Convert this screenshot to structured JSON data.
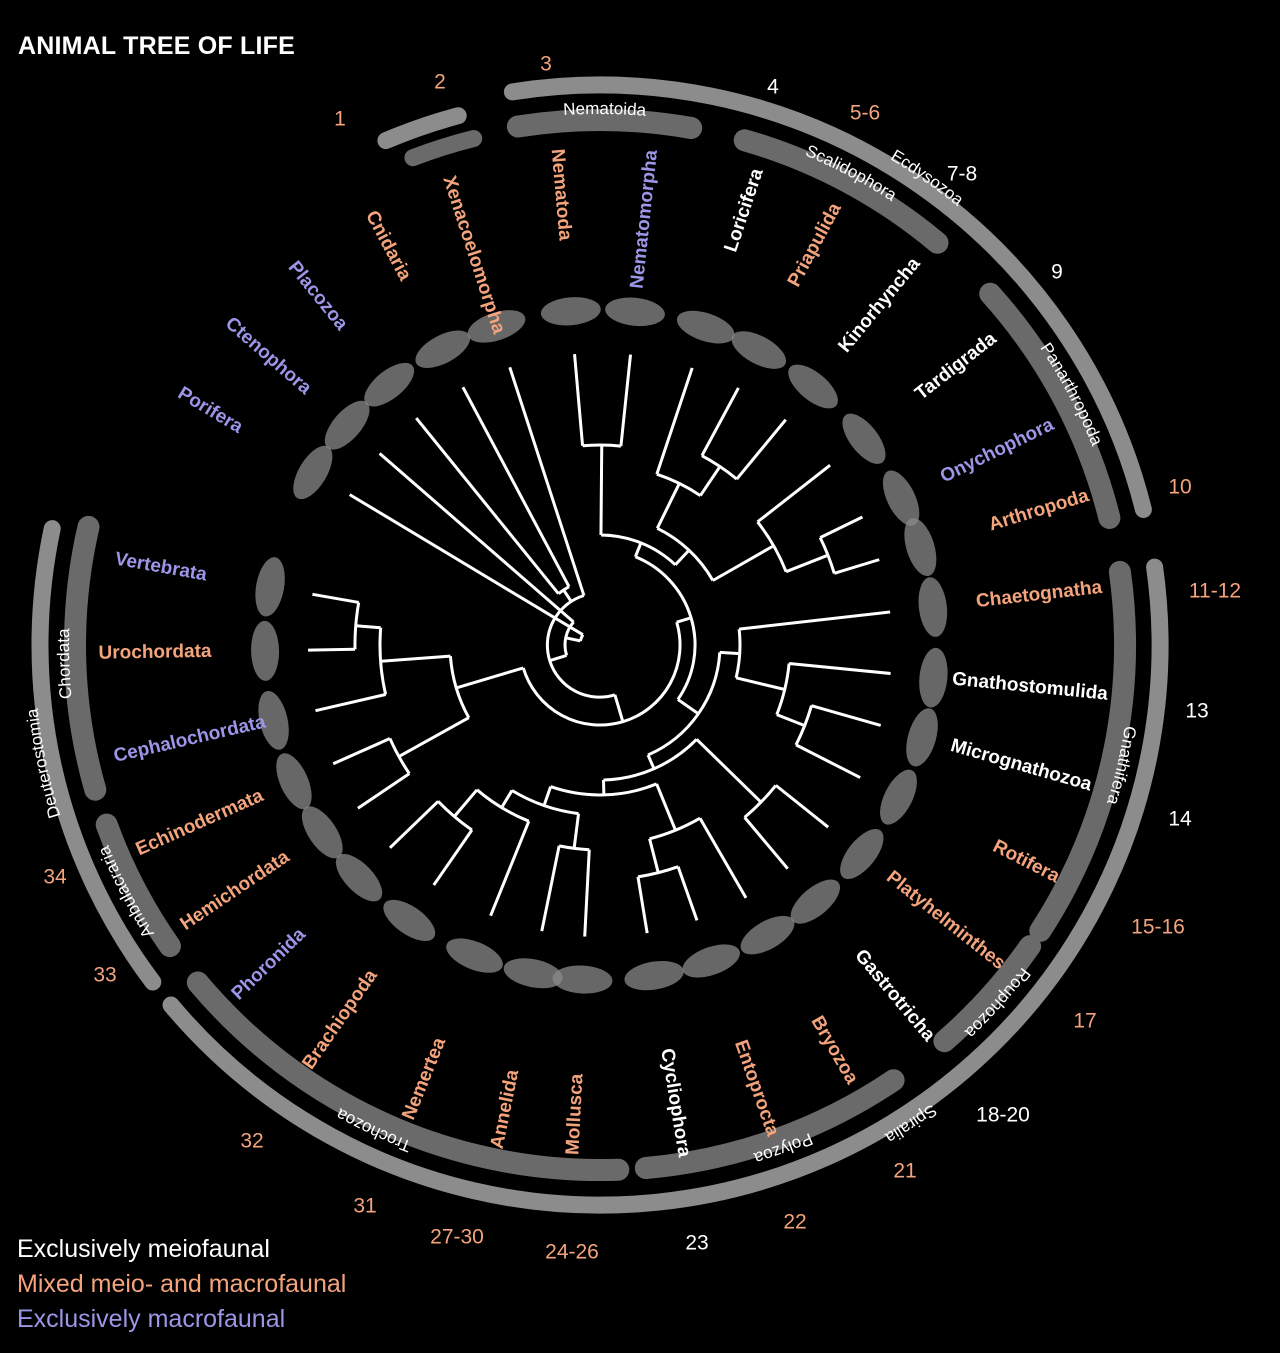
{
  "title": "ANIMAL TREE OF LIFE",
  "colors": {
    "meiofaunal": "#ffffff",
    "mixed": "#f4a47d",
    "macrofaunal": "#9c96e8",
    "outer_band": "#8c8c8c",
    "inner_band": "#6a6a6a",
    "tree": "#ffffff",
    "background": "#000000"
  },
  "legend": [
    {
      "label": "Exclusively meiofaunal",
      "category": "meiofaunal"
    },
    {
      "label": "Mixed meio- and macrofaunal",
      "category": "mixed"
    },
    {
      "label": "Exclusively macrofaunal",
      "category": "macrofaunal"
    }
  ],
  "taxa": [
    {
      "name": "Nematoda",
      "category": "mixed"
    },
    {
      "name": "Nematomorpha",
      "category": "macrofaunal"
    },
    {
      "name": "Loricifera",
      "category": "meiofaunal"
    },
    {
      "name": "Priapulida",
      "category": "mixed"
    },
    {
      "name": "Kinorhyncha",
      "category": "meiofaunal"
    },
    {
      "name": "Tardigrada",
      "category": "meiofaunal"
    },
    {
      "name": "Onychophora",
      "category": "macrofaunal"
    },
    {
      "name": "Arthropoda",
      "category": "mixed"
    },
    {
      "name": "Chaetognatha",
      "category": "mixed"
    },
    {
      "name": "Gnathostomulida",
      "category": "meiofaunal"
    },
    {
      "name": "Micrognathozoa",
      "category": "meiofaunal"
    },
    {
      "name": "Rotifera",
      "category": "mixed"
    },
    {
      "name": "Platyhelminthes",
      "category": "mixed"
    },
    {
      "name": "Gastrotricha",
      "category": "meiofaunal"
    },
    {
      "name": "Bryozoa",
      "category": "mixed"
    },
    {
      "name": "Entoprocta",
      "category": "mixed"
    },
    {
      "name": "Cycliophora",
      "category": "meiofaunal"
    },
    {
      "name": "Mollusca",
      "category": "mixed"
    },
    {
      "name": "Annelida",
      "category": "mixed"
    },
    {
      "name": "Nemertea",
      "category": "mixed"
    },
    {
      "name": "Brachiopoda",
      "category": "mixed"
    },
    {
      "name": "Phoronida",
      "category": "macrofaunal"
    },
    {
      "name": "Hemichordata",
      "category": "mixed"
    },
    {
      "name": "Echinodermata",
      "category": "mixed"
    },
    {
      "name": "Cephalochordata",
      "category": "macrofaunal"
    },
    {
      "name": "Urochordata",
      "category": "mixed"
    },
    {
      "name": "Vertebrata",
      "category": "macrofaunal"
    },
    {
      "name": "Porifera",
      "category": "macrofaunal"
    },
    {
      "name": "Ctenophora",
      "category": "macrofaunal"
    },
    {
      "name": "Placozoa",
      "category": "macrofaunal"
    },
    {
      "name": "Cnidaria",
      "category": "mixed"
    },
    {
      "name": "Xenacoelomorpha",
      "category": "mixed"
    }
  ],
  "clades": [
    {
      "name": "Ecdysozoa",
      "level": "outer"
    },
    {
      "name": "Spiralia",
      "level": "outer"
    },
    {
      "name": "Deuterostomia",
      "level": "outer"
    },
    {
      "name": "Nematoida",
      "level": "inner"
    },
    {
      "name": "Scalidophora",
      "level": "inner"
    },
    {
      "name": "Panarthropoda",
      "level": "inner"
    },
    {
      "name": "Gnathifera",
      "level": "inner"
    },
    {
      "name": "Rouphozoa",
      "level": "inner"
    },
    {
      "name": "Polyzoa",
      "level": "inner"
    },
    {
      "name": "Trochozoa",
      "level": "inner"
    },
    {
      "name": "Chordata",
      "level": "inner"
    },
    {
      "name": "Ambulacraria",
      "level": "inner"
    }
  ],
  "references": [
    {
      "text": "1",
      "category": "mixed"
    },
    {
      "text": "2",
      "category": "mixed"
    },
    {
      "text": "3",
      "category": "mixed"
    },
    {
      "text": "4",
      "category": "meiofaunal"
    },
    {
      "text": "5-6",
      "category": "mixed"
    },
    {
      "text": "7-8",
      "category": "meiofaunal"
    },
    {
      "text": "9",
      "category": "meiofaunal"
    },
    {
      "text": "10",
      "category": "mixed"
    },
    {
      "text": "11-12",
      "category": "mixed"
    },
    {
      "text": "13",
      "category": "meiofaunal"
    },
    {
      "text": "14",
      "category": "meiofaunal"
    },
    {
      "text": "15-16",
      "category": "mixed"
    },
    {
      "text": "17",
      "category": "mixed"
    },
    {
      "text": "18-20",
      "category": "meiofaunal"
    },
    {
      "text": "21",
      "category": "mixed"
    },
    {
      "text": "22",
      "category": "mixed"
    },
    {
      "text": "23",
      "category": "meiofaunal"
    },
    {
      "text": "24-26",
      "category": "mixed"
    },
    {
      "text": "27-30",
      "category": "mixed"
    },
    {
      "text": "31",
      "category": "mixed"
    },
    {
      "text": "32",
      "category": "mixed"
    },
    {
      "text": "33",
      "category": "mixed"
    },
    {
      "text": "34",
      "category": "mixed"
    }
  ]
}
